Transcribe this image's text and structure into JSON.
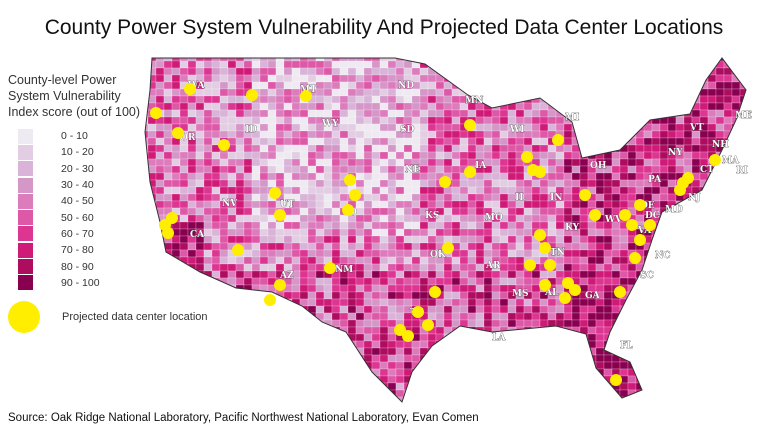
{
  "title": "County Power System Vulnerability And Projected Data Center Locations",
  "legend": {
    "title_lines": [
      "County-level Power",
      "System Vulnerability",
      "Index score (out of 100)"
    ],
    "bins": [
      {
        "label": "0 - 10",
        "color": "#efe9f1"
      },
      {
        "label": "10 - 20",
        "color": "#e3cde3"
      },
      {
        "label": "20 - 30",
        "color": "#d9b3d8"
      },
      {
        "label": "30 - 40",
        "color": "#d596c8"
      },
      {
        "label": "40 - 50",
        "color": "#dc7cbc"
      },
      {
        "label": "50 - 60",
        "color": "#de58a8"
      },
      {
        "label": "60 - 70",
        "color": "#dd3592"
      },
      {
        "label": "70 - 80",
        "color": "#cf1a77"
      },
      {
        "label": "80 - 90",
        "color": "#ae0c5f"
      },
      {
        "label": "90 - 100",
        "color": "#8a0050"
      }
    ],
    "data_center_label": "Projected data center location",
    "data_center_color": "#ffee00"
  },
  "states": [
    "WA",
    "OR",
    "ID",
    "MT",
    "WY",
    "ND",
    "SD",
    "NE",
    "MN",
    "WI",
    "MI",
    "IA",
    "IL",
    "IN",
    "OH",
    "NY",
    "VT",
    "NH",
    "ME",
    "MA",
    "CT",
    "RI",
    "PA",
    "NJ",
    "MD",
    "DE",
    "DC",
    "VA",
    "WV",
    "KY",
    "NC",
    "SC",
    "TN",
    "GA",
    "AL",
    "MS",
    "LA",
    "AR",
    "MO",
    "KS",
    "OK",
    "TX",
    "NM",
    "CO",
    "UT",
    "NV",
    "CA",
    "AZ",
    "FL"
  ],
  "source": "Source: Oak Ridge National Laboratory, Pacific Northwest National Laboratory, Evan Comen"
}
